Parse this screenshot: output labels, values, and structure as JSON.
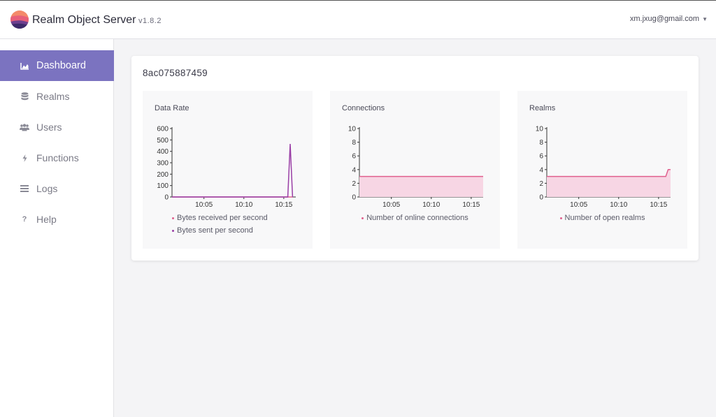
{
  "header": {
    "app_title": "Realm Object Server",
    "version": "v1.8.2",
    "user_email": "xm.jxug@gmail.com",
    "caret_icon": "caret-down-icon"
  },
  "sidebar": {
    "items": [
      {
        "label": "Dashboard",
        "icon": "area-chart-icon",
        "active": true
      },
      {
        "label": "Realms",
        "icon": "database-icon",
        "active": false
      },
      {
        "label": "Users",
        "icon": "users-icon",
        "active": false
      },
      {
        "label": "Functions",
        "icon": "bolt-icon",
        "active": false
      },
      {
        "label": "Logs",
        "icon": "list-icon",
        "active": false
      },
      {
        "label": "Help",
        "icon": "question-icon",
        "active": false
      }
    ]
  },
  "main": {
    "server_id": "8ac075887459"
  },
  "colors": {
    "accent": "#7b73c0",
    "pink": "#e0608e",
    "pink_fill": "#f7d6e4",
    "purple": "#9a3fa6"
  },
  "chart_data": [
    {
      "type": "line",
      "title": "Data Rate",
      "ylim": [
        0,
        600
      ],
      "yticks": [
        "0",
        "100",
        "200",
        "300",
        "400",
        "500",
        "600"
      ],
      "xticks": [
        "10:05",
        "10:10",
        "10:15"
      ],
      "xticks_minutes": [
        5,
        10,
        15
      ],
      "x_range_minutes": [
        1,
        16.5
      ],
      "series": [
        {
          "name": "Bytes received per second",
          "color": "#e0608e",
          "fill": false,
          "x": [
            1,
            15.5,
            15.8,
            16.1
          ],
          "y": [
            0,
            0,
            0,
            0
          ]
        },
        {
          "name": "Bytes sent per second",
          "color": "#9a3fa6",
          "fill": false,
          "x": [
            1,
            15.5,
            15.8,
            16.1
          ],
          "y": [
            0,
            0,
            465,
            0
          ]
        }
      ]
    },
    {
      "type": "area",
      "title": "Connections",
      "ylim": [
        0,
        10
      ],
      "yticks": [
        "0",
        "2",
        "4",
        "6",
        "8",
        "10"
      ],
      "xticks": [
        "10:05",
        "10:10",
        "10:15"
      ],
      "xticks_minutes": [
        5,
        10,
        15
      ],
      "x_range_minutes": [
        1,
        16.5
      ],
      "series": [
        {
          "name": "Number of online connections",
          "color": "#e0608e",
          "fill": true,
          "x": [
            1,
            16.5
          ],
          "y": [
            3,
            3
          ]
        }
      ]
    },
    {
      "type": "area",
      "title": "Realms",
      "ylim": [
        0,
        10
      ],
      "yticks": [
        "0",
        "2",
        "4",
        "6",
        "8",
        "10"
      ],
      "xticks": [
        "10:05",
        "10:10",
        "10:15"
      ],
      "xticks_minutes": [
        5,
        10,
        15
      ],
      "x_range_minutes": [
        1,
        16.5
      ],
      "series": [
        {
          "name": "Number of open realms",
          "color": "#e0608e",
          "fill": true,
          "x": [
            1,
            15.9,
            16.2,
            16.5
          ],
          "y": [
            3,
            3,
            4,
            4
          ]
        }
      ]
    }
  ]
}
